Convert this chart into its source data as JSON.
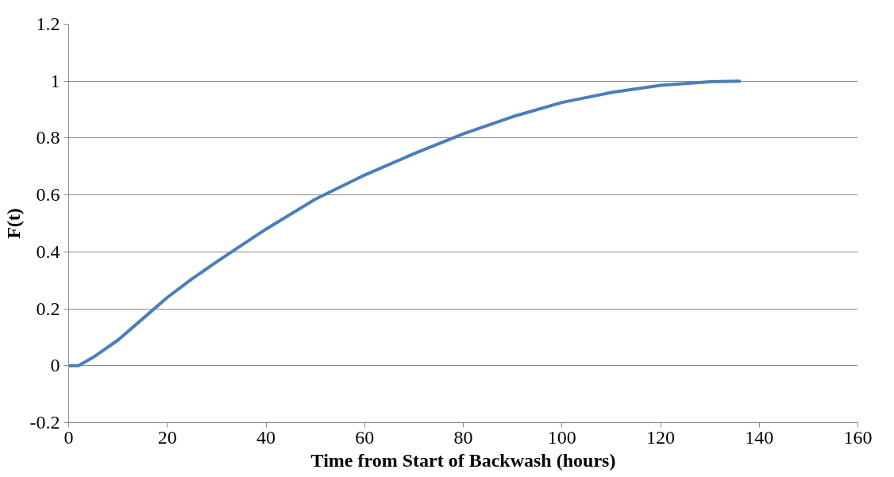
{
  "chart_data": {
    "type": "line",
    "xlabel": "Time from Start of Backwash (hours)",
    "ylabel": "F(t)",
    "xlim": [
      0,
      160
    ],
    "xticks": [
      0,
      20,
      40,
      60,
      80,
      100,
      120,
      140,
      160
    ],
    "ylim": [
      -0.2,
      1.2
    ],
    "yticks": [
      -0.2,
      0,
      0.2,
      0.4,
      0.6,
      0.8,
      1,
      1.2
    ],
    "grid": "y",
    "marker": "none",
    "line_style": "solid",
    "series": [
      {
        "color": "#4a7ebb",
        "x": [
          0,
          2,
          5,
          10,
          15,
          20,
          25,
          30,
          40,
          50,
          60,
          70,
          80,
          90,
          100,
          110,
          120,
          130,
          136
        ],
        "values": [
          0,
          0,
          0.03,
          0.09,
          0.165,
          0.24,
          0.305,
          0.365,
          0.48,
          0.585,
          0.67,
          0.745,
          0.815,
          0.875,
          0.925,
          0.96,
          0.985,
          0.998,
          1.0
        ]
      }
    ]
  }
}
